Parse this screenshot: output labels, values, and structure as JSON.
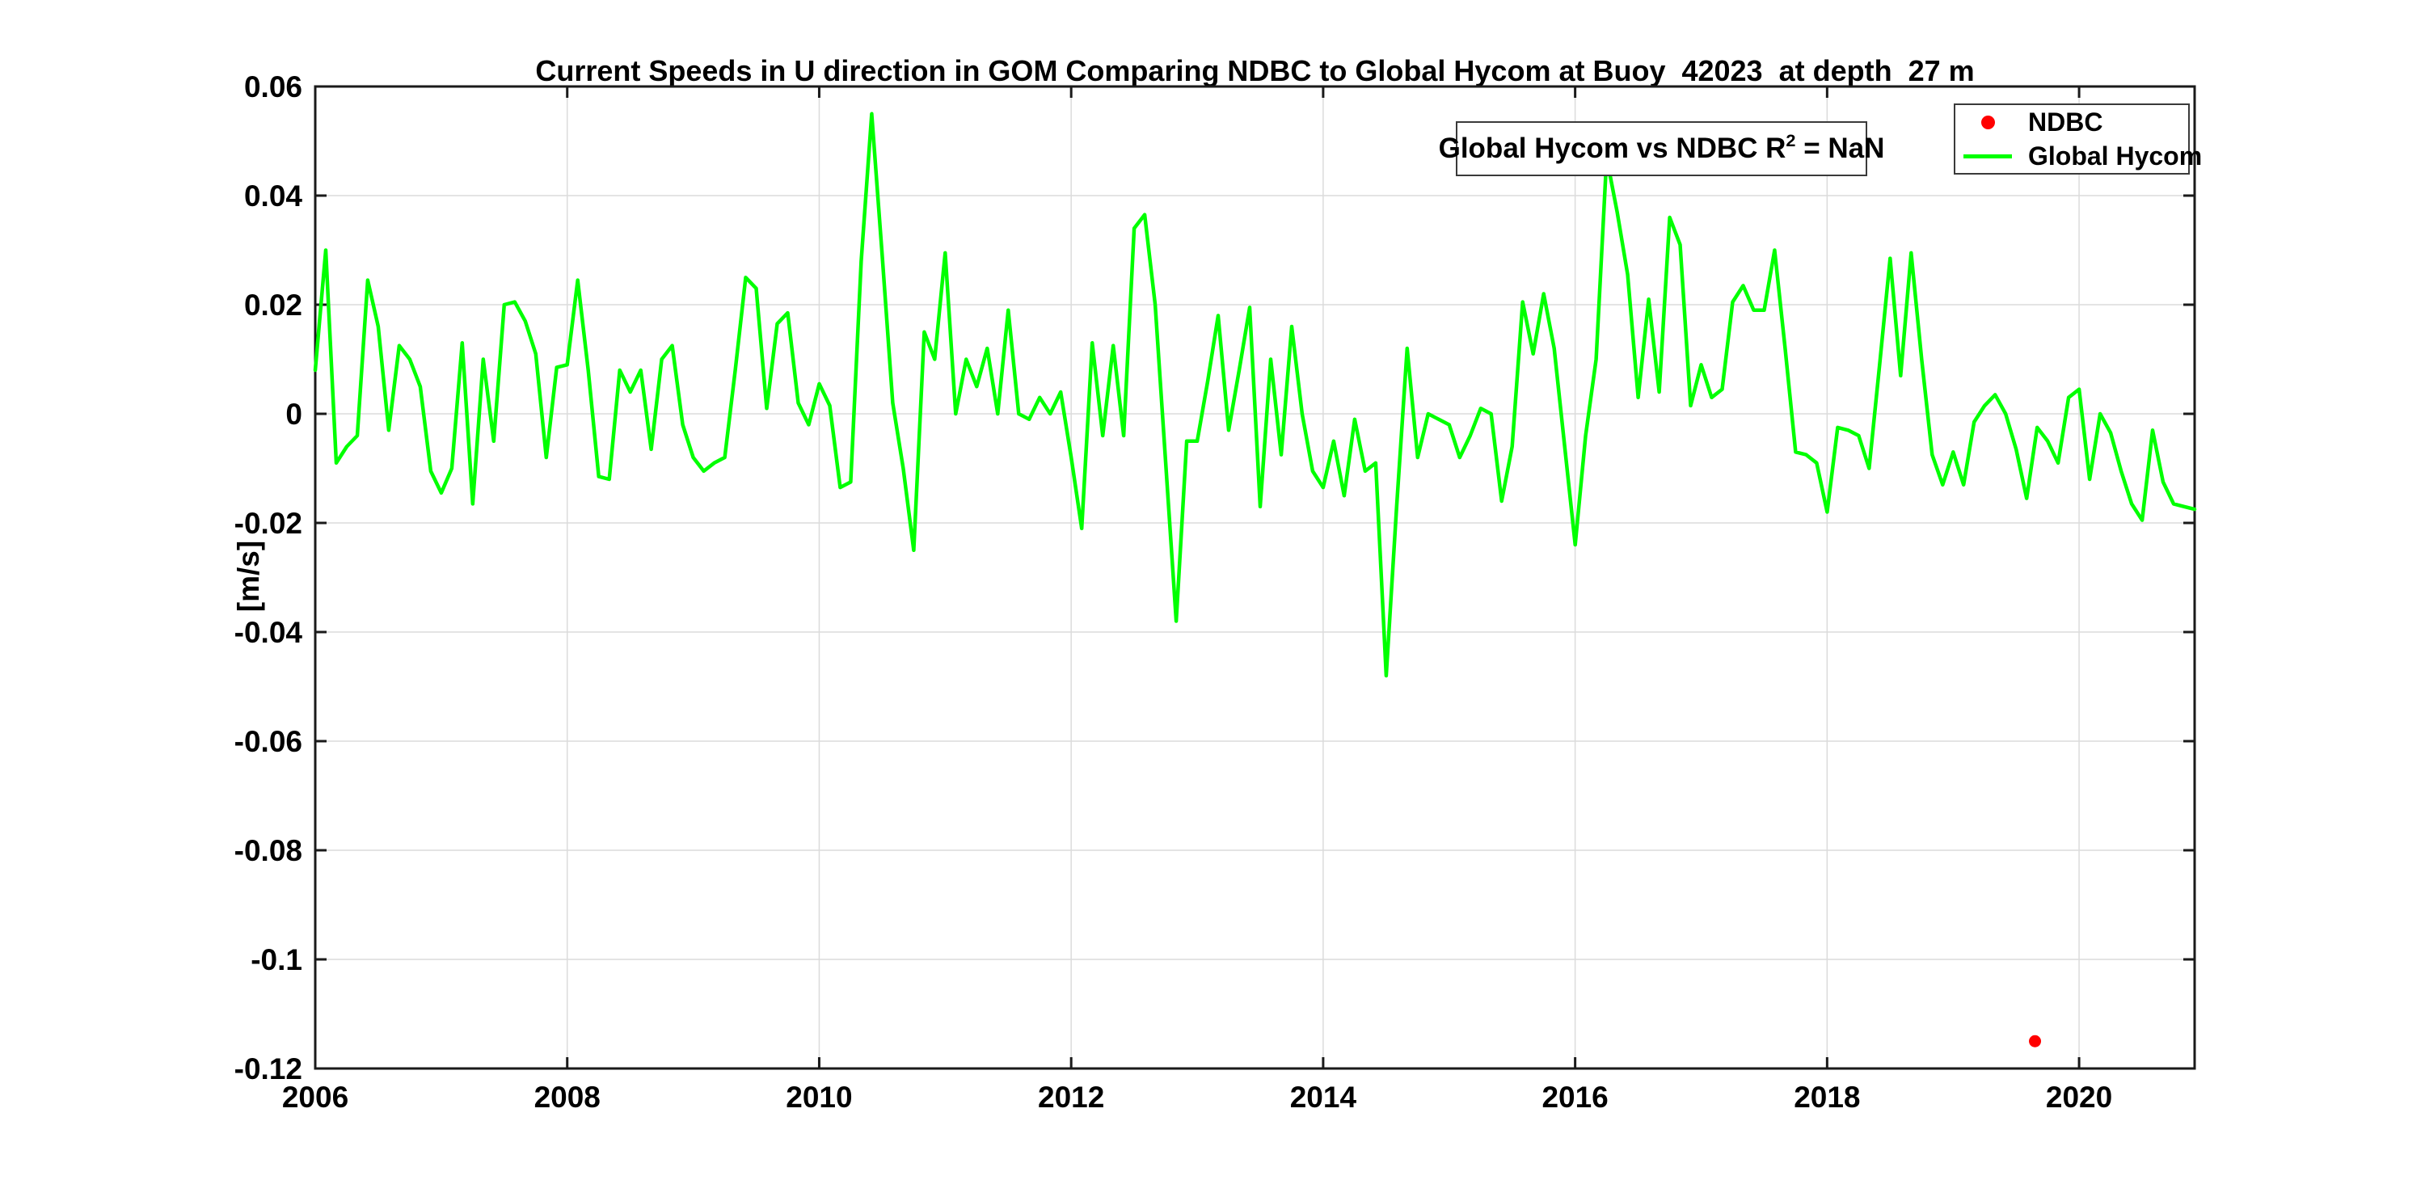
{
  "figure": {
    "title": "Current Speeds in U direction in GOM Comparing NDBC to Global Hycom at Buoy  42023  at depth  27 m",
    "ylabel": "[m/s]",
    "annotation": {
      "prefix": "Global Hycom vs NDBC R",
      "superscript": "2",
      "suffix": " = NaN"
    },
    "legend": [
      {
        "label": "NDBC",
        "marker": "red-dot",
        "color": "#FF0000"
      },
      {
        "label": "Global Hycom",
        "marker": "green-line",
        "color": "#00FF00"
      }
    ]
  },
  "chart_data": {
    "type": "line",
    "title": "Current Speeds in U direction in GOM Comparing NDBC to Global Hycom at Buoy  42023  at depth  27 m",
    "xlabel": "",
    "ylabel": "[m/s]",
    "xlim": [
      2006,
      2020.917
    ],
    "ylim": [
      -0.12,
      0.06
    ],
    "xticks": [
      2006,
      2008,
      2010,
      2012,
      2014,
      2016,
      2018,
      2020
    ],
    "xtick_labels": [
      "2006",
      "2008",
      "2010",
      "2012",
      "2014",
      "2016",
      "2018",
      "2020"
    ],
    "yticks": [
      0.06,
      0.04,
      0.02,
      0,
      -0.02,
      -0.04,
      -0.06,
      -0.08,
      -0.1,
      -0.12
    ],
    "ytick_labels": [
      "0.06",
      "0.04",
      "0.02",
      "0",
      "-0.02",
      "-0.04",
      "-0.06",
      "-0.08",
      "-0.1",
      "-0.12"
    ],
    "grid": true,
    "legend_position": "top-right",
    "annotation_text": "Global Hycom vs NDBC R^2 = NaN",
    "x_start_year": 2006,
    "x_step": "monthly",
    "series": [
      {
        "name": "Global Hycom",
        "color": "#00FF00",
        "line_width": 4.5,
        "values": [
          0.008,
          0.03,
          -0.009,
          -0.006,
          -0.004,
          0.0245,
          0.016,
          -0.003,
          0.0125,
          0.01,
          0.005,
          -0.0105,
          -0.0145,
          -0.01,
          0.013,
          -0.0165,
          0.01,
          -0.005,
          0.02,
          0.0205,
          0.017,
          0.011,
          -0.008,
          0.0085,
          0.009,
          0.0245,
          0.008,
          -0.0115,
          -0.012,
          0.008,
          0.004,
          0.008,
          -0.0065,
          0.01,
          0.0125,
          -0.002,
          -0.008,
          -0.0105,
          -0.009,
          -0.008,
          0.008,
          0.025,
          0.023,
          0.001,
          0.0165,
          0.0185,
          0.002,
          -0.002,
          0.0055,
          0.0015,
          -0.0135,
          -0.0125,
          0.028,
          0.055,
          0.029,
          0.002,
          -0.01,
          -0.025,
          0.015,
          0.01,
          0.0295,
          0.0,
          0.01,
          0.005,
          0.012,
          0.0,
          0.019,
          0.0,
          -0.001,
          0.003,
          0.0,
          0.004,
          -0.008,
          -0.021,
          0.013,
          -0.004,
          0.0125,
          -0.004,
          0.034,
          0.0365,
          0.02,
          -0.009,
          -0.038,
          -0.005,
          -0.005,
          0.006,
          0.018,
          -0.003,
          0.008,
          0.0195,
          -0.017,
          0.01,
          -0.0075,
          0.016,
          0.0,
          -0.0105,
          -0.0135,
          -0.005,
          -0.015,
          -0.001,
          -0.0105,
          -0.009,
          -0.048,
          -0.017,
          0.012,
          -0.008,
          0.0,
          -0.001,
          -0.002,
          -0.008,
          -0.004,
          0.001,
          0.0,
          -0.016,
          -0.006,
          0.0205,
          0.011,
          0.022,
          0.012,
          -0.006,
          -0.024,
          -0.004,
          0.01,
          0.047,
          0.037,
          0.0255,
          0.003,
          0.021,
          0.004,
          0.036,
          0.031,
          0.0015,
          0.009,
          0.003,
          0.0045,
          0.0205,
          0.0235,
          0.019,
          0.019,
          0.03,
          0.012,
          -0.007,
          -0.0075,
          -0.009,
          -0.018,
          -0.0025,
          -0.003,
          -0.004,
          -0.01,
          0.009,
          0.0285,
          0.007,
          0.0295,
          0.01,
          -0.0075,
          -0.013,
          -0.007,
          -0.013,
          -0.0015,
          0.0015,
          0.0035,
          0.0,
          -0.0065,
          -0.0155,
          -0.0025,
          -0.005,
          -0.009,
          0.003,
          0.0045,
          -0.012,
          0.0,
          -0.0035,
          -0.0105,
          -0.0165,
          -0.0195,
          -0.003,
          -0.0125,
          -0.0165,
          -0.017,
          -0.0175
        ]
      }
    ],
    "scatter": [
      {
        "name": "NDBC",
        "color": "#FF0000",
        "marker": "filled-circle",
        "points": [
          {
            "x": 2019.65,
            "y": -0.115
          }
        ]
      }
    ]
  },
  "colors": {
    "background": "#FFFFFF",
    "axis": "#1A1A1A",
    "grid": "#DBDBDB",
    "hycom_line": "#00FF00",
    "ndbc_marker": "#FF0000",
    "text": "#000000"
  }
}
